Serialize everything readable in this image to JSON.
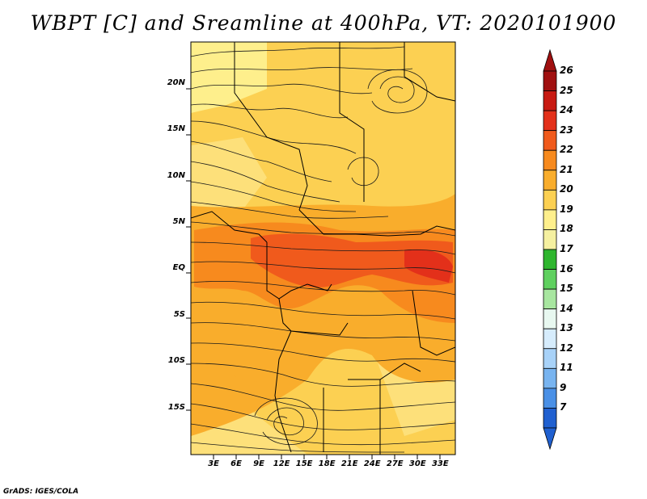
{
  "title": "WBPT [C] and Sreamline at 400hPa, VT: 2020101900",
  "footer": "GrADS: IGES/COLA",
  "map": {
    "lat_labels": [
      "20N",
      "15N",
      "10N",
      "5N",
      "EQ",
      "5S",
      "10S",
      "15S"
    ],
    "lat_values": [
      20,
      15,
      10,
      5,
      0,
      -5,
      -10,
      -15
    ],
    "lon_labels": [
      "3E",
      "6E",
      "9E",
      "12E",
      "15E",
      "18E",
      "21E",
      "24E",
      "27E",
      "30E",
      "33E"
    ],
    "lon_values": [
      3,
      6,
      9,
      12,
      15,
      18,
      21,
      24,
      27,
      30,
      33
    ],
    "lon_range": [
      0,
      35
    ],
    "lat_range": [
      -20,
      24.5
    ]
  },
  "colorbar": {
    "labels": [
      "26",
      "25",
      "24",
      "23",
      "22",
      "21",
      "20",
      "19",
      "18",
      "17",
      "16",
      "15",
      "14",
      "13",
      "12",
      "11",
      "9",
      "7"
    ],
    "colors": [
      "#a01010",
      "#c81a12",
      "#e3301a",
      "#f05a1c",
      "#f78a1e",
      "#f9ad2c",
      "#fcd052",
      "#feef8c",
      "#f5f0a0",
      "#2eb62e",
      "#5fd05f",
      "#a8e6a0",
      "#e8f8f0",
      "#d6ecfc",
      "#a8d2f8",
      "#78b4f0",
      "#4a90e6",
      "#2060d0"
    ],
    "triangle_top": "#a01010",
    "triangle_bottom": "#2060d0"
  }
}
